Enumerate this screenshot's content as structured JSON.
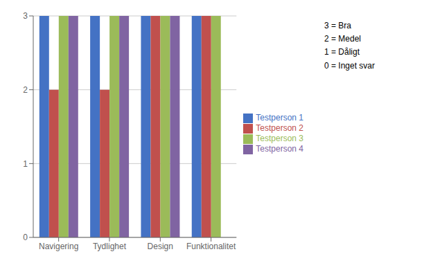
{
  "chart_data": {
    "type": "bar",
    "categories": [
      "Navigering",
      "Tydlighet",
      "Design",
      "Funktionalitet"
    ],
    "series": [
      {
        "name": "Testperson 1",
        "color": "#4472C4",
        "values": [
          3,
          3,
          3,
          3
        ]
      },
      {
        "name": "Testperson 2",
        "color": "#C0504D",
        "values": [
          2,
          2,
          3,
          3
        ]
      },
      {
        "name": "Testperson 3",
        "color": "#9BBB59",
        "values": [
          3,
          3,
          3,
          3
        ]
      },
      {
        "name": "Testperson 4",
        "color": "#8064A2",
        "values": [
          3,
          3,
          3,
          0
        ]
      }
    ],
    "ylim": [
      0,
      3
    ],
    "yticks": [
      0,
      1,
      2,
      3
    ],
    "grid": true,
    "legend": "right",
    "annotations": [
      "3 = Bra",
      "2 = Medel",
      "1 = Dåligt",
      "0 = Inget svar"
    ]
  }
}
